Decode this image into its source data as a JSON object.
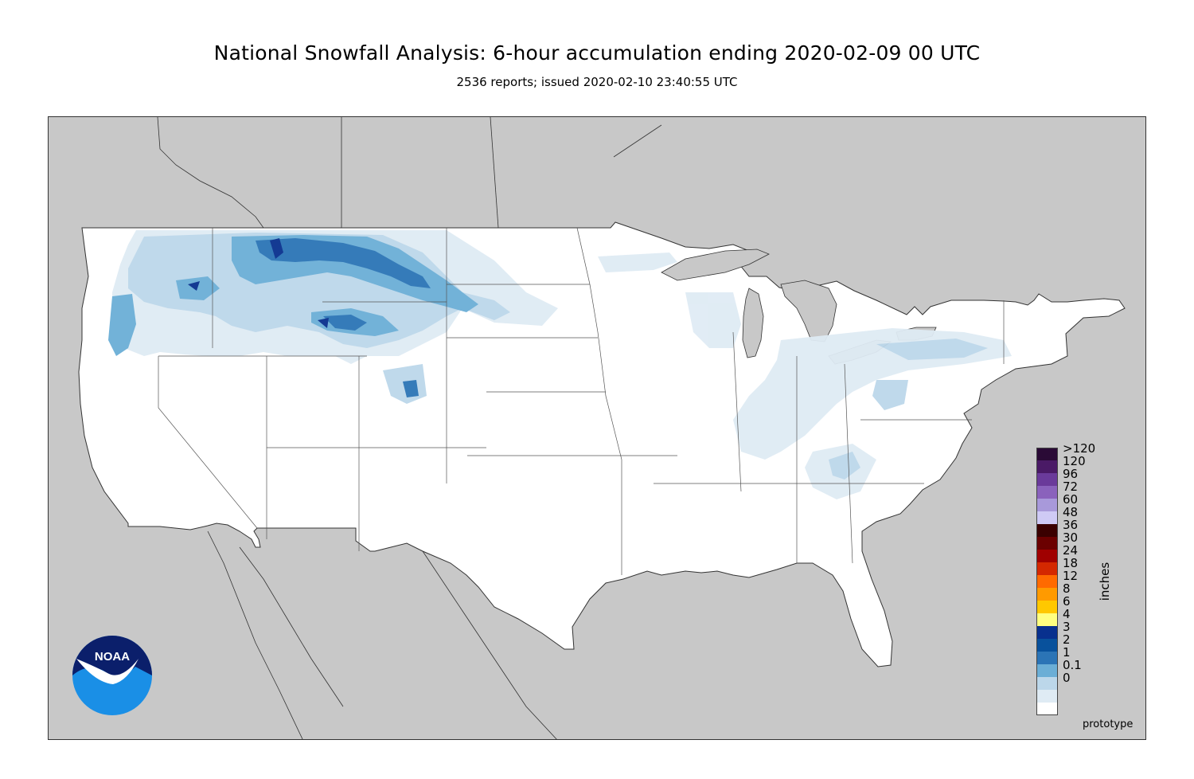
{
  "header": {
    "title": "National Snowfall Analysis: 6-hour accumulation ending 2020-02-09 00 UTC",
    "subtitle": "2536 reports; issued 2020-02-10 23:40:55 UTC"
  },
  "map": {
    "land_color": "#ffffff",
    "outside_color": "#c8c8c8",
    "border_color": "#555555"
  },
  "legend": {
    "units": "inches",
    "bins": [
      {
        "label": ">120",
        "color": "#2a0a36"
      },
      {
        "label": "120",
        "color": "#4a1a66"
      },
      {
        "label": "96",
        "color": "#6a3a9a"
      },
      {
        "label": "72",
        "color": "#8a62bc"
      },
      {
        "label": "60",
        "color": "#a899da"
      },
      {
        "label": "48",
        "color": "#cfcaf5"
      },
      {
        "label": "36",
        "color": "#3a0000"
      },
      {
        "label": "30",
        "color": "#6b0000"
      },
      {
        "label": "24",
        "color": "#a00000"
      },
      {
        "label": "18",
        "color": "#d42800"
      },
      {
        "label": "12",
        "color": "#ff6a00"
      },
      {
        "label": "8",
        "color": "#ff9a00"
      },
      {
        "label": "6",
        "color": "#ffc800"
      },
      {
        "label": "4",
        "color": "#ffff80"
      },
      {
        "label": "3",
        "color": "#08308e"
      },
      {
        "label": "2",
        "color": "#08519c"
      },
      {
        "label": "1",
        "color": "#2b74b6"
      },
      {
        "label": "0.1",
        "color": "#6baed6"
      },
      {
        "label": "0",
        "color": "#bcd7ea"
      },
      {
        "label": "",
        "color": "#dfebf4"
      },
      {
        "label": "",
        "color": "#ffffff"
      }
    ]
  },
  "footer": {
    "note": "prototype"
  },
  "logo": {
    "name": "noaa-logo",
    "text": "NOAA"
  }
}
